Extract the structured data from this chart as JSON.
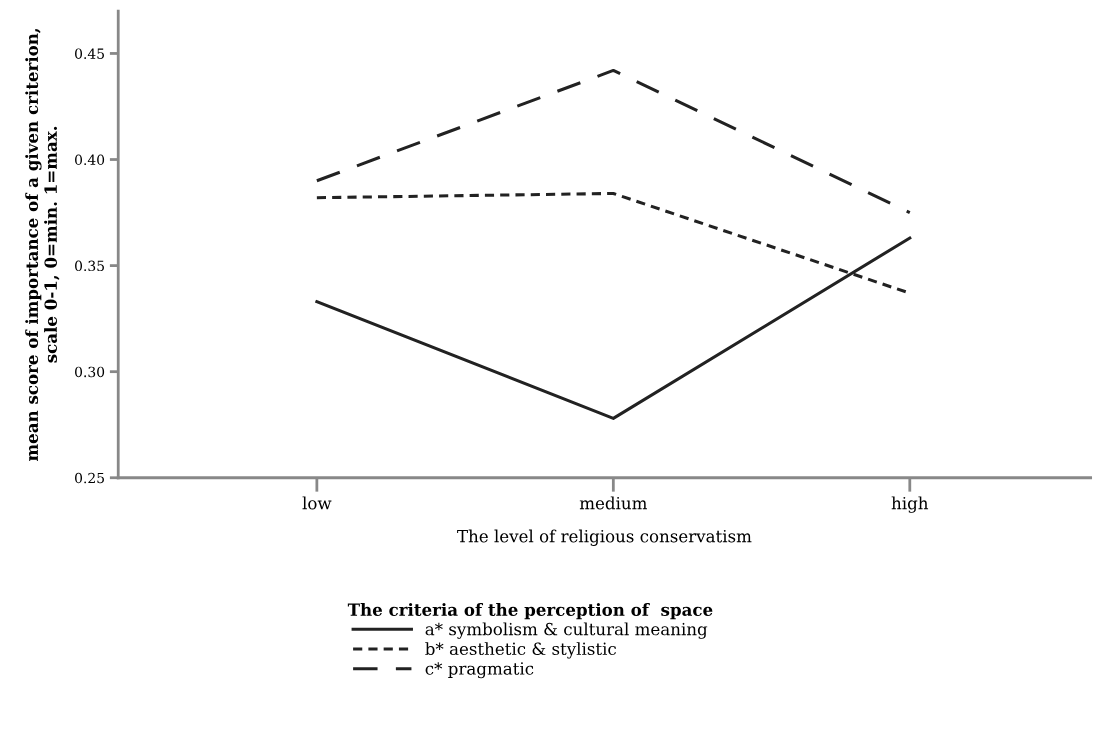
{
  "chart_data": {
    "type": "line",
    "xlabel": "The level of religious conservatism",
    "ylabel": "mean score of importance of a given criterion,\nscale 0-1, 0=min. 1=max.",
    "categories": [
      "low",
      "medium",
      "high"
    ],
    "series": [
      {
        "name": "a* symbolism & cultural meaning",
        "color": "#222222",
        "line_style": "solid",
        "values": [
          0.333,
          0.278,
          0.363
        ]
      },
      {
        "name": "b* aesthetic & stylistic",
        "color": "#222222",
        "line_style": "dotted",
        "values": [
          0.382,
          0.384,
          0.337
        ]
      },
      {
        "name": "c* pragmatic",
        "color": "#222222",
        "line_style": "dashed",
        "values": [
          0.39,
          0.442,
          0.375
        ]
      }
    ],
    "ylim": [
      0.25,
      0.47
    ],
    "yticks": [
      {
        "value": 0.25,
        "label": "0.25"
      },
      {
        "value": 0.3,
        "label": "0.30"
      },
      {
        "value": 0.35,
        "label": "0.35"
      },
      {
        "value": 0.4,
        "label": "0.40"
      },
      {
        "value": 0.45,
        "label": "0.45"
      }
    ],
    "legend": "bottom",
    "legend_title": "The criteria of the perception of  space",
    "grid": false
  }
}
